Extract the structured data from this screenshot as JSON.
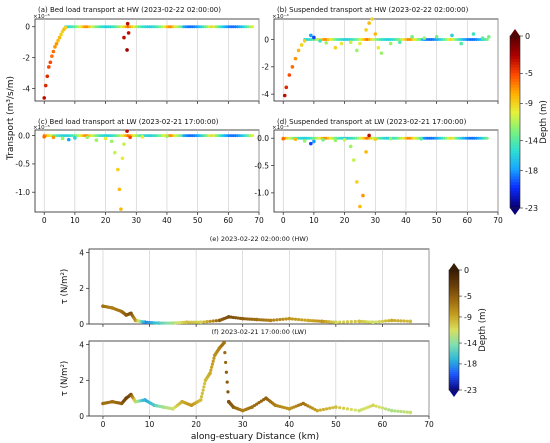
{
  "figure": {
    "shared_ylabel_top": "Transport (m³/s/m)",
    "shared_xlabel_bottom": "along-estuary Distance (km)"
  },
  "colorbars": [
    {
      "label": "Depth (m)",
      "ticks": [
        "0",
        "-5",
        "-9",
        "-14",
        "-18",
        "-23"
      ],
      "range": [
        -23,
        0
      ],
      "colors": [
        "#08007a",
        "#0a2cff",
        "#18a6ff",
        "#2fe0d0",
        "#7cf27c",
        "#e6f23a",
        "#ffb000",
        "#ff4a00",
        "#b00000",
        "#5a0000"
      ]
    },
    {
      "label": "Depth (m)",
      "ticks": [
        "0",
        "-5",
        "-9",
        "-14",
        "-18",
        "-23"
      ],
      "range": [
        -23,
        0
      ],
      "colors": [
        "#0b0b8a",
        "#1e58ff",
        "#2fb7d8",
        "#7fe0b0",
        "#d8e060",
        "#c8a020",
        "#9c6a10",
        "#6a3e08",
        "#3a1e04"
      ]
    }
  ],
  "chart_data": [
    {
      "type": "scatter",
      "panel": "a",
      "title": "(a) Bed load transport at HW (2023-02-22 02:00:00)",
      "exponent": "×10⁻⁵",
      "xlim": [
        -3,
        70
      ],
      "xticks": [
        0,
        10,
        20,
        30,
        40,
        50,
        60,
        70
      ],
      "ylim": [
        -4.8,
        0.5
      ],
      "yticks": [
        0,
        -2,
        -4
      ],
      "xticklabels_shown": false,
      "points": [
        [
          0,
          -4.6,
          -3
        ],
        [
          0.5,
          -3.8,
          -4
        ],
        [
          1,
          -3.2,
          -4
        ],
        [
          1.5,
          -2.6,
          -5
        ],
        [
          2,
          -2.3,
          -5
        ],
        [
          2.5,
          -1.9,
          -6
        ],
        [
          3,
          -1.6,
          -6
        ],
        [
          3.5,
          -1.3,
          -7
        ],
        [
          4,
          -1.1,
          -7
        ],
        [
          4.5,
          -0.9,
          -8
        ],
        [
          5,
          -0.7,
          -8
        ],
        [
          5.5,
          -0.5,
          -9
        ],
        [
          6,
          -0.3,
          -9
        ],
        [
          6.5,
          -0.15,
          -8
        ],
        [
          7,
          -0.05,
          -9
        ],
        [
          26,
          -0.7,
          -3
        ],
        [
          27,
          -1.5,
          -2
        ],
        [
          27.5,
          -0.4,
          -3
        ],
        [
          27.2,
          0.2,
          -3
        ]
      ],
      "baseline": {
        "x": [
          7,
          68
        ],
        "y": 0
      }
    },
    {
      "type": "scatter",
      "panel": "b",
      "title": "(b) Suspended transport at HW (2023-02-22 02:00:00)",
      "exponent": "×10⁻⁴",
      "xlim": [
        -3,
        70
      ],
      "xticks": [
        0,
        10,
        20,
        30,
        40,
        50,
        60,
        70
      ],
      "ylim": [
        -4.5,
        1.5
      ],
      "yticks": [
        0,
        -2,
        -4
      ],
      "xticklabels_shown": false,
      "points": [
        [
          0.5,
          -4.1,
          -3
        ],
        [
          1,
          -3.5,
          -4
        ],
        [
          2,
          -2.6,
          -5
        ],
        [
          3,
          -2.0,
          -6
        ],
        [
          4,
          -1.4,
          -7
        ],
        [
          5,
          -0.8,
          -8
        ],
        [
          6,
          -0.4,
          -9
        ],
        [
          7,
          -0.1,
          -9
        ],
        [
          9,
          0.3,
          -18
        ],
        [
          10,
          0.15,
          -20
        ],
        [
          12,
          -0.1,
          -15
        ],
        [
          14,
          -0.25,
          -12
        ],
        [
          17,
          -0.6,
          -9
        ],
        [
          19,
          -0.3,
          -10
        ],
        [
          22,
          -0.2,
          -11
        ],
        [
          24,
          -0.8,
          -12
        ],
        [
          25,
          -0.3,
          -10
        ],
        [
          27,
          0.7,
          -9
        ],
        [
          28,
          1.2,
          -8
        ],
        [
          29,
          1.5,
          -9
        ],
        [
          30,
          0.4,
          -8
        ],
        [
          31,
          -0.6,
          -10
        ],
        [
          32,
          -1.0,
          -12
        ],
        [
          35,
          -0.3,
          -12
        ],
        [
          38,
          -0.2,
          -14
        ],
        [
          42,
          0.2,
          -13
        ],
        [
          46,
          0.1,
          -12
        ],
        [
          50,
          0.2,
          -13
        ],
        [
          55,
          0.3,
          -16
        ],
        [
          58,
          -0.3,
          -14
        ],
        [
          62,
          0.4,
          -15
        ],
        [
          65,
          0.1,
          -14
        ],
        [
          67,
          0.2,
          -13
        ]
      ],
      "baseline": {
        "x": [
          7,
          67
        ],
        "y": 0
      }
    },
    {
      "type": "scatter",
      "panel": "c",
      "title": "(c) Bed load transport at LW (2023-02-21 17:00:00)",
      "exponent": "×10⁻⁵",
      "xlim": [
        -3,
        70
      ],
      "xticks": [
        0,
        10,
        20,
        30,
        40,
        50,
        60,
        70
      ],
      "ylim": [
        -1.35,
        0.1
      ],
      "yticks": [
        0.0,
        -0.5,
        -1.0
      ],
      "xticklabels_shown": true,
      "points": [
        [
          0,
          -0.02,
          -6
        ],
        [
          3,
          -0.03,
          -7
        ],
        [
          6,
          -0.05,
          -12
        ],
        [
          8,
          -0.07,
          -18
        ],
        [
          10,
          -0.04,
          -16
        ],
        [
          14,
          -0.03,
          -12
        ],
        [
          17,
          -0.08,
          -12
        ],
        [
          20,
          -0.05,
          -10
        ],
        [
          22,
          -0.1,
          -12
        ],
        [
          23,
          -0.3,
          -11
        ],
        [
          24,
          -0.6,
          -9
        ],
        [
          24.5,
          -0.95,
          -8
        ],
        [
          25,
          -1.3,
          -8
        ],
        [
          25.5,
          -0.4,
          -10
        ],
        [
          26,
          -0.15,
          -11
        ],
        [
          27,
          0.08,
          -3
        ],
        [
          28,
          -0.03,
          -5
        ],
        [
          32,
          -0.02,
          -10
        ],
        [
          40,
          -0.01,
          -12
        ]
      ],
      "baseline": {
        "x": [
          0,
          68
        ],
        "y": 0
      }
    },
    {
      "type": "scatter",
      "panel": "d",
      "title": "(d) Suspended transport at LW (2023-02-21 17:00:00)",
      "exponent": "×10⁻⁴",
      "xlim": [
        -3,
        70
      ],
      "xticks": [
        0,
        10,
        20,
        30,
        40,
        50,
        60,
        70
      ],
      "ylim": [
        -1.35,
        0.15
      ],
      "yticks": [
        0.0,
        -0.5,
        -1.0
      ],
      "xticklabels_shown": true,
      "points": [
        [
          0,
          -0.01,
          -6
        ],
        [
          4,
          -0.02,
          -8
        ],
        [
          7,
          -0.05,
          -12
        ],
        [
          9,
          -0.1,
          -20
        ],
        [
          10,
          -0.06,
          -18
        ],
        [
          13,
          -0.03,
          -13
        ],
        [
          17,
          -0.04,
          -12
        ],
        [
          20,
          -0.03,
          -11
        ],
        [
          22,
          -0.15,
          -12
        ],
        [
          23,
          -0.4,
          -11
        ],
        [
          24,
          -0.8,
          -9
        ],
        [
          25,
          -1.25,
          -8
        ],
        [
          26,
          -1.05,
          -7
        ],
        [
          27,
          -0.25,
          -8
        ],
        [
          28,
          0.05,
          -3
        ],
        [
          30,
          -0.02,
          -9
        ],
        [
          35,
          -0.01,
          -12
        ],
        [
          45,
          -0.01,
          -14
        ]
      ],
      "baseline": {
        "x": [
          0,
          67
        ],
        "y": 0
      }
    },
    {
      "type": "scatter",
      "panel": "e",
      "title": "(e) 2023-02-22 02:00:00 (HW)",
      "ylabel": "τ (N/m²)",
      "xlim": [
        -3,
        70
      ],
      "xticks": [
        0,
        10,
        20,
        30,
        40,
        50,
        60,
        70
      ],
      "ylim": [
        0,
        4.2
      ],
      "yticks": [
        0,
        2,
        4
      ],
      "xticklabels_shown": false,
      "points": [
        [
          0,
          1.0,
          -6
        ],
        [
          2,
          0.9,
          -7
        ],
        [
          4,
          0.7,
          -6
        ],
        [
          5,
          0.5,
          -5
        ],
        [
          6,
          0.6,
          -4
        ],
        [
          7,
          0.2,
          -8
        ],
        [
          9,
          0.1,
          -19
        ],
        [
          12,
          0.05,
          -16
        ],
        [
          15,
          0.05,
          -13
        ],
        [
          18,
          0.1,
          -10
        ],
        [
          21,
          0.1,
          -11
        ],
        [
          25,
          0.2,
          -5
        ],
        [
          27,
          0.4,
          -4
        ],
        [
          30,
          0.3,
          -5
        ],
        [
          33,
          0.25,
          -6
        ],
        [
          36,
          0.2,
          -7
        ],
        [
          40,
          0.3,
          -8
        ],
        [
          44,
          0.2,
          -9
        ],
        [
          47,
          0.15,
          -8
        ],
        [
          50,
          0.1,
          -11
        ],
        [
          55,
          0.15,
          -10
        ],
        [
          58,
          0.1,
          -12
        ],
        [
          62,
          0.2,
          -9
        ],
        [
          66,
          0.15,
          -10
        ]
      ]
    },
    {
      "type": "scatter",
      "panel": "f",
      "title": "(f) 2023-02-21 17:00:00 (LW)",
      "ylabel": "τ (N/m²)",
      "xlabel": "along-estuary Distance (km)",
      "xlim": [
        -3,
        70
      ],
      "xticks": [
        0,
        10,
        20,
        30,
        40,
        50,
        60,
        70
      ],
      "ylim": [
        0,
        4.2
      ],
      "yticks": [
        0,
        2,
        4
      ],
      "xticklabels_shown": true,
      "points": [
        [
          0,
          0.7,
          -6
        ],
        [
          2,
          0.8,
          -6
        ],
        [
          4,
          0.7,
          -5
        ],
        [
          5,
          1.0,
          -3
        ],
        [
          6,
          1.2,
          -4
        ],
        [
          7,
          0.8,
          -12
        ],
        [
          9,
          0.9,
          -18
        ],
        [
          11,
          0.6,
          -16
        ],
        [
          13,
          0.5,
          -13
        ],
        [
          15,
          0.4,
          -12
        ],
        [
          17,
          0.8,
          -9
        ],
        [
          19,
          0.6,
          -8
        ],
        [
          21,
          0.9,
          -10
        ],
        [
          22,
          2.0,
          -10
        ],
        [
          23,
          2.4,
          -9
        ],
        [
          24,
          3.4,
          -8
        ],
        [
          25,
          3.8,
          -7
        ],
        [
          26,
          4.1,
          -6
        ],
        [
          27,
          0.8,
          -4
        ],
        [
          28,
          0.5,
          -5
        ],
        [
          30,
          0.3,
          -7
        ],
        [
          32,
          0.5,
          -6
        ],
        [
          35,
          1.0,
          -5
        ],
        [
          37,
          0.6,
          -7
        ],
        [
          40,
          0.4,
          -8
        ],
        [
          43,
          0.7,
          -6
        ],
        [
          46,
          0.3,
          -9
        ],
        [
          50,
          0.5,
          -10
        ],
        [
          55,
          0.3,
          -12
        ],
        [
          58,
          0.6,
          -11
        ],
        [
          62,
          0.3,
          -13
        ],
        [
          66,
          0.2,
          -12
        ]
      ]
    }
  ]
}
